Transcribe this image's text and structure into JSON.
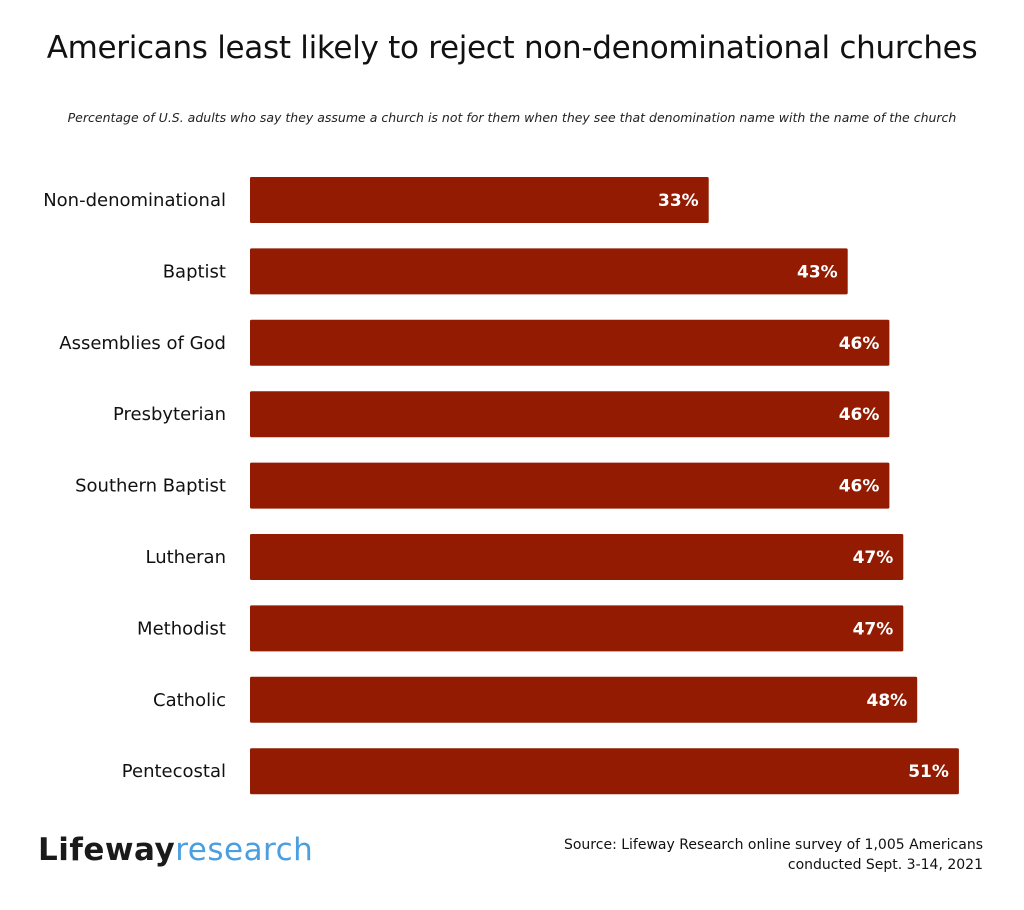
{
  "title": "Americans least likely to reject non-denominational churches",
  "subtitle": "Percentage of U.S. adults who say they assume a church is not for them when they see that denomination name with the name of the church",
  "logo": {
    "brand": "Lifeway",
    "sub": "research"
  },
  "source": {
    "line1": "Source: Lifeway Research online survey of 1,005 Americans",
    "line2": "conducted Sept. 3-14, 2021"
  },
  "colors": {
    "bar": "#921b02",
    "logo_accent": "#4a9fe0"
  },
  "chart_data": {
    "type": "bar",
    "orientation": "horizontal",
    "title": "Americans least likely to reject non-denominational churches",
    "subtitle": "Percentage of U.S. adults who say they assume a church is not for them when they see that denomination name with the name of the church",
    "categories": [
      "Non-denominational",
      "Baptist",
      "Assemblies of God",
      "Presbyterian",
      "Southern Baptist",
      "Lutheran",
      "Methodist",
      "Catholic",
      "Pentecostal"
    ],
    "values": [
      33,
      43,
      46,
      46,
      46,
      47,
      47,
      48,
      51
    ],
    "value_labels": [
      "33%",
      "43%",
      "46%",
      "46%",
      "46%",
      "47%",
      "47%",
      "48%",
      "51%"
    ],
    "unit": "%",
    "grid": false,
    "legend": "none"
  }
}
